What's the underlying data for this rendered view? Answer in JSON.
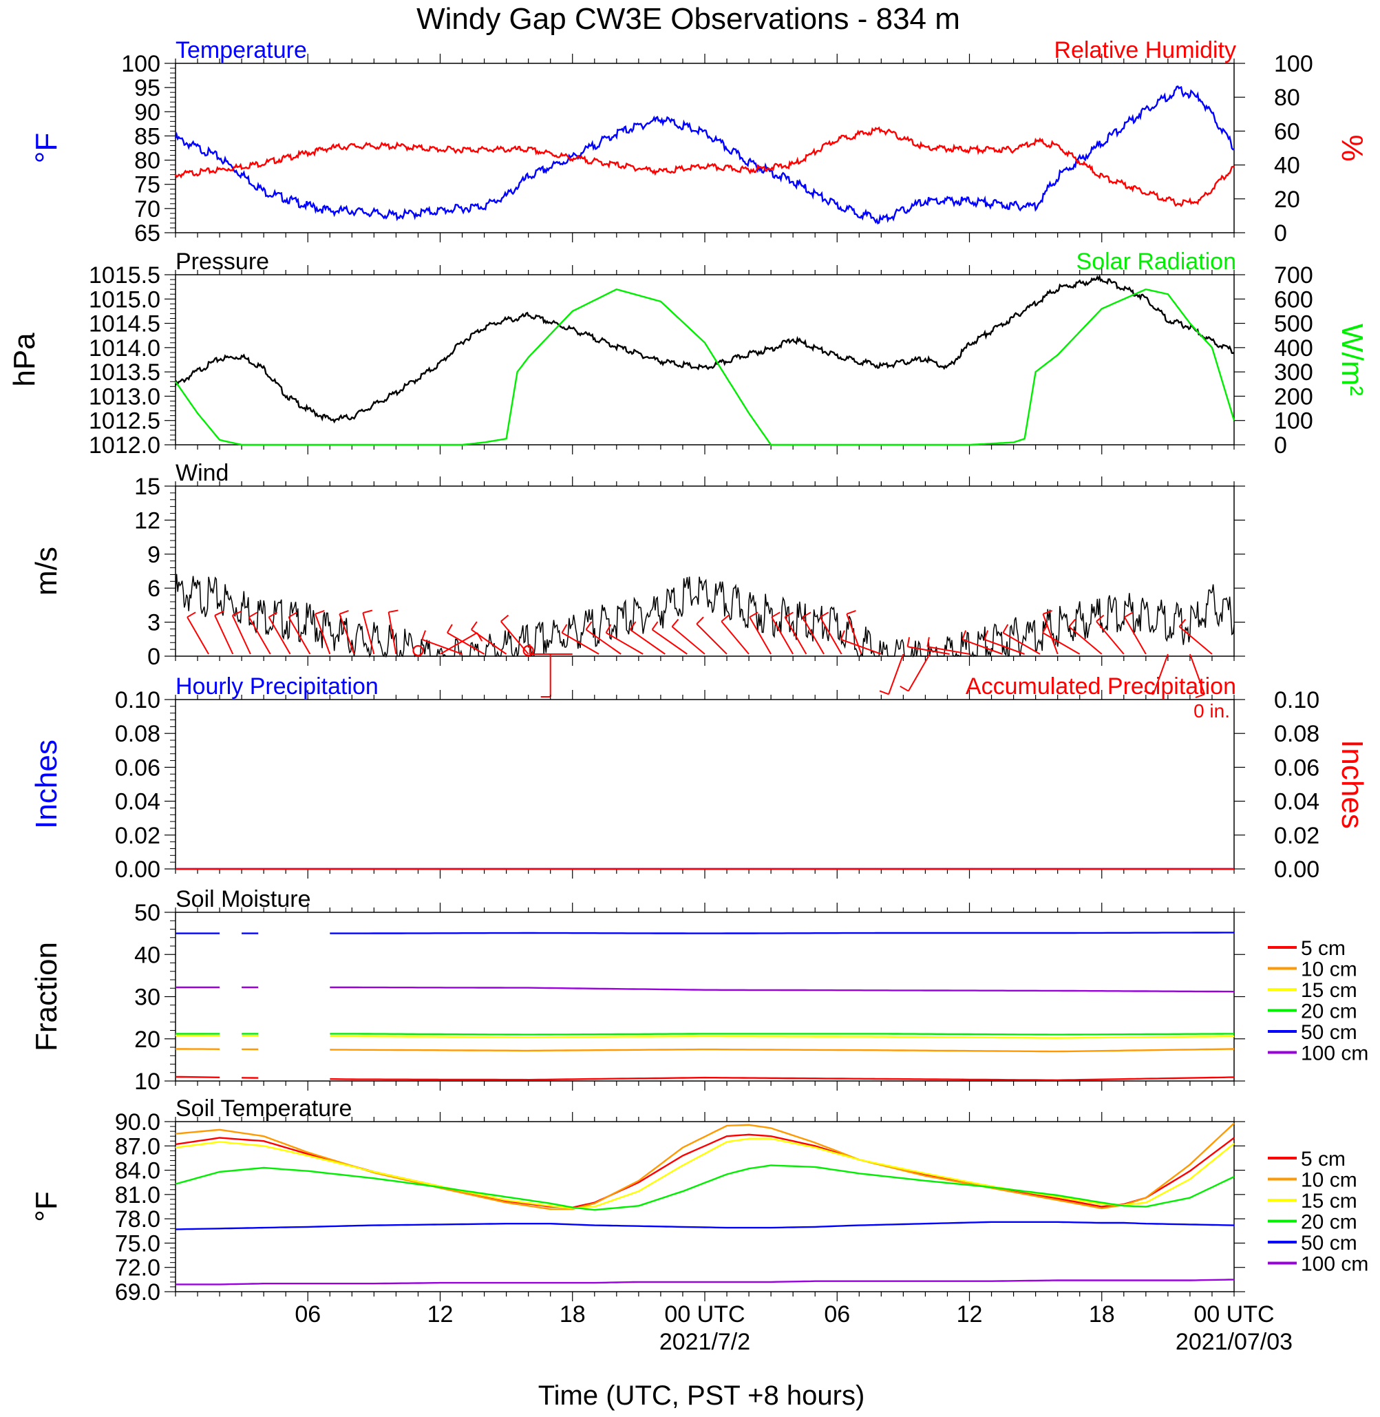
{
  "title": "Windy Gap CW3E Observations - 834 m",
  "time_axis": {
    "tick_labels": [
      "06",
      "12",
      "18",
      "00 UTC",
      "06",
      "12",
      "18",
      "00 UTC"
    ],
    "date_labels": [
      "2021/7/2",
      "2021/07/03"
    ],
    "xlabel": "Time (UTC, PST +8 hours)"
  },
  "colors": {
    "blue": "#0000ff",
    "red": "#ff0000",
    "green": "#00ee00",
    "black": "#000000",
    "orange": "#ff9900",
    "yellow": "#ffff00",
    "purple": "#9900dd"
  },
  "chart_data": [
    {
      "id": "temp_rh",
      "type": "line",
      "title_left": "Temperature",
      "title_right": "Relative Humidity",
      "ylabel_left": "°F",
      "ylabel_right": "%",
      "ylim_left": [
        65,
        100
      ],
      "ylim_right": [
        0,
        100
      ],
      "yticks_left": [
        "100",
        "95",
        "90",
        "85",
        "80",
        "75",
        "70",
        "65"
      ],
      "yticks_right": [
        "100",
        "80",
        "60",
        "40",
        "20",
        "0"
      ],
      "x_hours": [
        0,
        2,
        4,
        6,
        7,
        8,
        10,
        12,
        14,
        15,
        16,
        18,
        20,
        22,
        24,
        26,
        28,
        30,
        32,
        34,
        36,
        38,
        39,
        40,
        42,
        44,
        45.5,
        46.5,
        48
      ],
      "series": [
        {
          "name": "Temperature",
          "color": "blue",
          "axis": "left",
          "values": [
            85,
            81,
            74,
            71,
            70,
            70,
            69,
            70,
            71,
            73,
            77,
            81,
            86,
            89,
            86,
            80,
            76,
            71,
            68,
            72,
            72,
            71,
            71,
            77,
            84,
            91,
            95,
            93,
            83
          ]
        },
        {
          "name": "Relative Humidity",
          "color": "red",
          "axis": "right",
          "values": [
            35,
            38,
            42,
            48,
            51,
            52,
            52,
            50,
            50,
            50,
            50,
            45,
            41,
            37,
            40,
            38,
            41,
            56,
            62,
            51,
            50,
            50,
            55,
            52,
            34,
            25,
            18,
            20,
            40
          ]
        }
      ]
    },
    {
      "id": "pressure_solar",
      "type": "line",
      "title_left": "Pressure",
      "title_right": "Solar Radiation",
      "ylabel_left": "hPa",
      "ylabel_right": "W/m²",
      "ylim_left": [
        1012.0,
        1015.5
      ],
      "ylim_right": [
        0,
        700
      ],
      "yticks_left": [
        "1015.5",
        "1015.0",
        "1014.5",
        "1014.0",
        "1013.5",
        "1013.0",
        "1012.5",
        "1012.0"
      ],
      "yticks_right": [
        "700",
        "600",
        "500",
        "400",
        "300",
        "200",
        "100",
        "0"
      ],
      "x_hours": [
        0,
        1,
        2,
        3,
        4,
        5,
        6,
        7,
        8,
        9,
        10,
        11,
        12,
        13,
        14,
        15,
        15.5,
        16,
        18,
        20,
        22,
        24,
        26,
        27,
        28,
        30,
        32,
        34,
        35,
        36,
        38,
        38.5,
        39,
        40,
        42,
        44,
        45,
        46,
        47,
        48
      ],
      "series": [
        {
          "name": "Pressure",
          "color": "black",
          "axis": "left",
          "values": [
            1013.25,
            1013.55,
            1013.8,
            1013.85,
            1013.6,
            1013.05,
            1012.75,
            1012.55,
            1012.6,
            1012.85,
            1013.1,
            1013.4,
            1013.7,
            1014.15,
            1014.45,
            1014.6,
            1014.62,
            1014.7,
            1014.4,
            1014.05,
            1013.75,
            1013.6,
            1013.9,
            1014.0,
            1014.2,
            1013.85,
            1013.65,
            1013.8,
            1013.6,
            1014.1,
            1014.65,
            1014.8,
            1014.95,
            1015.25,
            1015.45,
            1015.05,
            1014.6,
            1014.45,
            1014.15,
            1013.95
          ]
        },
        {
          "name": "Solar Radiation",
          "color": "green",
          "axis": "right",
          "values": [
            260,
            130,
            20,
            0,
            0,
            0,
            0,
            0,
            0,
            0,
            0,
            0,
            0,
            0,
            10,
            25,
            300,
            360,
            550,
            640,
            590,
            420,
            130,
            0,
            0,
            0,
            0,
            0,
            0,
            0,
            10,
            25,
            300,
            370,
            560,
            640,
            620,
            500,
            400,
            100
          ]
        }
      ]
    },
    {
      "id": "wind",
      "type": "line",
      "title_left": "Wind",
      "ylabel_left": "m/s",
      "ylim_left": [
        0,
        15
      ],
      "yticks_left": [
        "15",
        "12",
        "9",
        "6",
        "3",
        "0"
      ],
      "x_hours": [
        0,
        2,
        4,
        6,
        8,
        10,
        11,
        12,
        14,
        16,
        18,
        20,
        22,
        23.5,
        26,
        28,
        30,
        31,
        32,
        34,
        36,
        38,
        40,
        42,
        44,
        45,
        46,
        47,
        48
      ],
      "series": [
        {
          "name": "Wind speed",
          "color": "black",
          "axis": "left",
          "values": [
            6.5,
            6.0,
            4.5,
            3.8,
            2.5,
            1.8,
            1.2,
            0.3,
            1.2,
            2.0,
            3.0,
            4.0,
            5.0,
            6.5,
            5.0,
            4.0,
            3.5,
            2.2,
            0.8,
            0.5,
            1.5,
            2.5,
            3.5,
            4.5,
            4.8,
            4.0,
            3.5,
            5.5,
            4.2
          ]
        }
      ],
      "barbs_x_hours": [
        1.5,
        2.6,
        3.4,
        4.3,
        5.2,
        6.1,
        7,
        8.1,
        9,
        10,
        12,
        13,
        14,
        15,
        16,
        17,
        18,
        19.2,
        20.2,
        21.2,
        22.2,
        23.2,
        24,
        25,
        26,
        27,
        28,
        28.6,
        29.4,
        30.2,
        31.1,
        32,
        33,
        34.2,
        35.1,
        36,
        37.5,
        38.5,
        39.2,
        40,
        41,
        42,
        43,
        44,
        45,
        46,
        47
      ],
      "barbs_direction_deg": [
        330,
        335,
        335,
        330,
        330,
        330,
        340,
        340,
        345,
        350,
        60,
        290,
        300,
        305,
        320,
        180,
        270,
        300,
        305,
        300,
        305,
        305,
        310,
        315,
        320,
        330,
        330,
        330,
        330,
        330,
        340,
        290,
        200,
        210,
        280,
        280,
        290,
        290,
        300,
        340,
        300,
        310,
        320,
        330,
        200,
        160,
        310
      ],
      "calm_x_hours": [
        11,
        16
      ]
    },
    {
      "id": "precip",
      "type": "line",
      "title_left": "Hourly Precipitation",
      "title_right": "Accumulated Precipitation",
      "annotation": "0 in.",
      "ylabel_left": "Inches",
      "ylabel_right": "Inches",
      "ylim_left": [
        0,
        0.1
      ],
      "ylim_right": [
        0,
        0.1
      ],
      "yticks_left": [
        "0.10",
        "0.08",
        "0.06",
        "0.04",
        "0.02",
        "0.00"
      ],
      "yticks_right": [
        "0.10",
        "0.08",
        "0.06",
        "0.04",
        "0.02",
        "0.00"
      ],
      "x_hours": [
        0,
        48
      ],
      "series": [
        {
          "name": "Hourly Precipitation",
          "color": "blue",
          "axis": "left",
          "values": [
            0,
            0
          ]
        },
        {
          "name": "Accumulated Precipitation",
          "color": "red",
          "axis": "right",
          "values": [
            0,
            0
          ]
        }
      ]
    },
    {
      "id": "soil_moisture",
      "type": "line",
      "title_left": "Soil Moisture",
      "ylabel_left": "Fraction",
      "ylim_left": [
        10,
        50
      ],
      "yticks_left": [
        "50",
        "40",
        "30",
        "20",
        "10"
      ],
      "legend": [
        "5 cm",
        "10 cm",
        "15 cm",
        "20 cm",
        "50 cm",
        "100 cm"
      ],
      "legend_colors": [
        "red",
        "orange",
        "yellow",
        "green",
        "blue",
        "purple"
      ],
      "gaps_hours": [
        [
          2.2,
          2.9
        ],
        [
          3.9,
          7.0
        ]
      ],
      "x_hours": [
        0,
        8,
        16,
        24,
        32,
        40,
        48
      ],
      "series": [
        {
          "name": "5 cm",
          "color": "red",
          "axis": "left",
          "values": [
            11.0,
            10.4,
            10.3,
            10.8,
            10.5,
            10.2,
            10.9
          ]
        },
        {
          "name": "10 cm",
          "color": "orange",
          "axis": "left",
          "values": [
            17.6,
            17.4,
            17.2,
            17.5,
            17.3,
            17.0,
            17.6
          ]
        },
        {
          "name": "15 cm",
          "color": "yellow",
          "axis": "left",
          "values": [
            20.8,
            20.6,
            20.4,
            20.6,
            20.5,
            20.2,
            20.6
          ]
        },
        {
          "name": "20 cm",
          "color": "green",
          "axis": "left",
          "values": [
            21.2,
            21.2,
            21.0,
            21.2,
            21.2,
            21.0,
            21.2
          ]
        },
        {
          "name": "50 cm",
          "color": "blue",
          "axis": "left",
          "values": [
            45.0,
            45.0,
            45.1,
            45.0,
            45.1,
            45.1,
            45.2
          ]
        },
        {
          "name": "100 cm",
          "color": "purple",
          "axis": "left",
          "values": [
            32.2,
            32.2,
            32.1,
            31.6,
            31.5,
            31.4,
            31.2
          ]
        }
      ]
    },
    {
      "id": "soil_temp",
      "type": "line",
      "title_left": "Soil Temperature",
      "ylabel_left": "°F",
      "ylim_left": [
        69,
        90
      ],
      "yticks_left": [
        "90.0",
        "87.0",
        "84.0",
        "81.0",
        "78.0",
        "75.0",
        "72.0",
        "69.0"
      ],
      "legend": [
        "5 cm",
        "10 cm",
        "15 cm",
        "20 cm",
        "50 cm",
        "100 cm"
      ],
      "legend_colors": [
        "red",
        "orange",
        "yellow",
        "green",
        "blue",
        "purple"
      ],
      "x_hours": [
        0,
        2,
        4,
        6,
        9,
        12,
        15,
        17,
        18,
        19,
        21,
        23,
        25,
        26,
        27,
        29,
        31,
        34,
        37,
        40,
        42,
        43,
        44,
        46,
        48
      ],
      "series": [
        {
          "name": "5 cm",
          "color": "red",
          "axis": "left",
          "values": [
            87.2,
            88.0,
            87.6,
            86.0,
            83.8,
            82.0,
            80.2,
            79.5,
            79.4,
            80.0,
            82.5,
            85.8,
            88.2,
            88.4,
            88.2,
            87.0,
            85.3,
            83.5,
            82.0,
            80.5,
            79.5,
            79.8,
            80.6,
            83.9,
            88.0
          ]
        },
        {
          "name": "10 cm",
          "color": "orange",
          "axis": "left",
          "values": [
            88.5,
            89.0,
            88.2,
            86.2,
            83.7,
            81.8,
            80.0,
            79.2,
            79.2,
            79.9,
            82.7,
            86.8,
            89.5,
            89.6,
            89.2,
            87.4,
            85.3,
            83.3,
            81.8,
            80.3,
            79.3,
            79.7,
            80.6,
            84.7,
            89.8
          ]
        },
        {
          "name": "15 cm",
          "color": "yellow",
          "axis": "left",
          "values": [
            86.8,
            87.5,
            87.0,
            85.8,
            83.8,
            82.0,
            80.3,
            79.6,
            79.3,
            79.5,
            81.4,
            84.6,
            87.5,
            87.9,
            87.9,
            86.8,
            85.3,
            83.6,
            82.0,
            80.7,
            79.8,
            79.7,
            80.0,
            82.9,
            87.3
          ]
        },
        {
          "name": "20 cm",
          "color": "green",
          "axis": "left",
          "values": [
            82.3,
            83.8,
            84.3,
            83.9,
            83.0,
            81.9,
            80.7,
            79.9,
            79.4,
            79.1,
            79.6,
            81.4,
            83.5,
            84.2,
            84.6,
            84.4,
            83.6,
            82.7,
            81.9,
            80.9,
            80.0,
            79.6,
            79.5,
            80.6,
            83.2
          ]
        },
        {
          "name": "50 cm",
          "color": "blue",
          "axis": "left",
          "values": [
            76.7,
            76.8,
            76.9,
            77.0,
            77.2,
            77.3,
            77.4,
            77.4,
            77.3,
            77.2,
            77.1,
            77.0,
            76.9,
            76.9,
            76.9,
            77.0,
            77.2,
            77.4,
            77.6,
            77.6,
            77.5,
            77.5,
            77.4,
            77.3,
            77.2
          ]
        },
        {
          "name": "100 cm",
          "color": "purple",
          "axis": "left",
          "values": [
            69.9,
            69.9,
            70.0,
            70.0,
            70.0,
            70.1,
            70.1,
            70.1,
            70.1,
            70.1,
            70.2,
            70.2,
            70.2,
            70.2,
            70.2,
            70.3,
            70.3,
            70.3,
            70.3,
            70.4,
            70.4,
            70.4,
            70.4,
            70.4,
            70.5
          ]
        }
      ]
    }
  ]
}
